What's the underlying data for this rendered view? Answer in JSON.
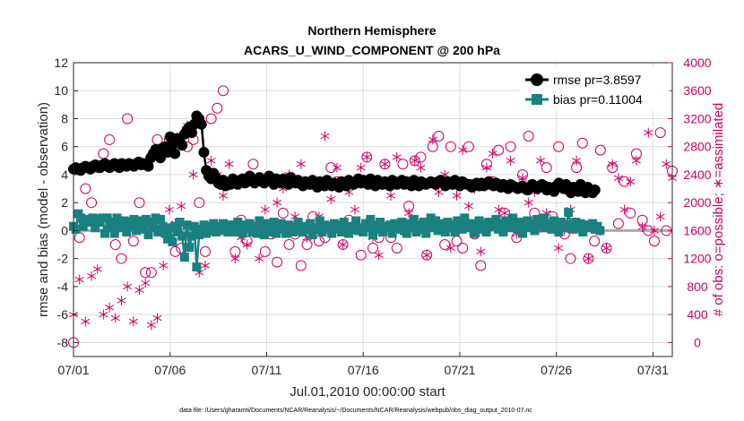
{
  "chart_data": {
    "type": "line",
    "title": "Northern Hemisphere",
    "subtitle": "ACARS_U_WIND_COMPONENT @ 200 hPa",
    "xlabel": "Jul.01,2010 00:00:00 start",
    "ylabel": "rmse and bias (model - observation)",
    "ylabel_right": "# of obs: o=possible; ∗=assimilated",
    "footnote": "data file: /Users/gharamti/Documents/NCAR/Reanalysis/~/Documents/NCAR/Reanalysis/webpub/obs_diag_output_2010-07.nc",
    "xlim": [
      1,
      32
    ],
    "ylim": [
      -9,
      12
    ],
    "ylim_right": [
      -200,
      4000
    ],
    "x_ticks": [
      1,
      6,
      11,
      16,
      21,
      26,
      31
    ],
    "x_tick_labels": [
      "07/01",
      "07/06",
      "07/11",
      "07/16",
      "07/21",
      "07/26",
      "07/31"
    ],
    "y_ticks": [
      -8,
      -6,
      -4,
      -2,
      0,
      2,
      4,
      6,
      8,
      10,
      12
    ],
    "y_ticks_right": [
      0,
      400,
      800,
      1200,
      1600,
      2000,
      2400,
      2800,
      3200,
      3600,
      4000
    ],
    "grid": true,
    "legend_position": "top-right",
    "x_step": 0.125,
    "series": [
      {
        "name": "rmse pr=3.8597",
        "axis": "left",
        "color": "#000000",
        "marker": "circle",
        "values": [
          4.4,
          4.5,
          4.4,
          4.3,
          4.5,
          4.6,
          4.5,
          4.4,
          4.6,
          4.7,
          4.6,
          4.5,
          4.7,
          4.8,
          4.6,
          4.5,
          4.7,
          4.8,
          4.6,
          4.5,
          4.8,
          4.7,
          4.6,
          4.8,
          4.7,
          4.6,
          4.8,
          4.9,
          4.7,
          4.8,
          4.7,
          4.6,
          5.2,
          5.5,
          5.8,
          5.6,
          5.2,
          5.9,
          6.0,
          5.6,
          6.7,
          6.2,
          5.5,
          6.6,
          6.4,
          6.1,
          6.9,
          7.2,
          7.4,
          7.0,
          7.6,
          8.2,
          8.0,
          7.6,
          5.6,
          4.3,
          3.9,
          3.7,
          4.1,
          3.8,
          3.4,
          3.3,
          3.6,
          3.2,
          3.4,
          3.3,
          3.7,
          3.5,
          3.3,
          3.6,
          3.7,
          3.4,
          3.5,
          3.9,
          3.6,
          3.4,
          3.6,
          3.8,
          3.5,
          3.4,
          3.6,
          3.9,
          3.5,
          3.3,
          3.7,
          3.6,
          3.4,
          3.7,
          3.5,
          3.3,
          3.8,
          3.5,
          3.4,
          3.6,
          3.4,
          3.2,
          3.5,
          3.4,
          3.3,
          3.6,
          3.4,
          3.1,
          3.5,
          3.3,
          3.2,
          3.6,
          3.3,
          3.2,
          3.4,
          3.3,
          3.1,
          3.5,
          3.3,
          3.2,
          3.6,
          3.4,
          3.3,
          3.5,
          3.7,
          3.4,
          3.6,
          3.5,
          3.3,
          3.7,
          3.4,
          3.2,
          3.6,
          3.4,
          3.3,
          3.5,
          3.4,
          3.2,
          3.6,
          3.5,
          3.3,
          3.4,
          3.6,
          3.3,
          3.5,
          3.4,
          3.2,
          3.6,
          3.3,
          3.2,
          3.5,
          3.4,
          3.3,
          3.4,
          3.5,
          3.4,
          3.3,
          3.5,
          3.6,
          3.4,
          3.2,
          3.5,
          3.4,
          3.3,
          3.6,
          3.4,
          3.2,
          3.5,
          3.4,
          3.3,
          3.3,
          3.1,
          3.3,
          3.4,
          3.2,
          3.4,
          3.2,
          3.3,
          3.5,
          3.3,
          3.2,
          3.4,
          3.3,
          3.1,
          3.3,
          3.2,
          3.0,
          3.3,
          3.2,
          3.1,
          3.0,
          3.1,
          3.2,
          3.0,
          2.9,
          3.1,
          3.3,
          3.2,
          3.0,
          3.1,
          3.3,
          3.2,
          2.9,
          3.1,
          3.0,
          2.8,
          3.2,
          3.4,
          3.2,
          3.0,
          3.3,
          2.9,
          2.7,
          3.1,
          3.0,
          2.8,
          3.3,
          3.0,
          2.7,
          3.1,
          2.9,
          2.7,
          2.9
        ]
      },
      {
        "name": "bias pr=0.11004",
        "axis": "left",
        "color": "#1a8080",
        "marker": "square",
        "values": [
          0.3,
          0.1,
          1.2,
          0.9,
          0.3,
          0.8,
          0.6,
          0.8,
          0.9,
          0.2,
          0.8,
          0.6,
          0.9,
          -0.2,
          0.9,
          0.2,
          0.6,
          -0.2,
          0.9,
          0.4,
          0.2,
          0.7,
          -0.1,
          0.6,
          0.3,
          0.8,
          0.0,
          0.7,
          0.4,
          0.1,
          0.8,
          -0.3,
          0.6,
          0.2,
          0.9,
          -0.1,
          0.8,
          0.3,
          -0.2,
          -0.6,
          0.2,
          -0.8,
          0.3,
          -0.1,
          0.6,
          -0.4,
          -1.9,
          0.4,
          -1.2,
          -0.4,
          0.3,
          -2.6,
          -0.3,
          0.1,
          0.4,
          -0.2,
          0.3,
          0.0,
          0.5,
          -0.1,
          0.3,
          0.0,
          0.5,
          0.1,
          -0.1,
          0.4,
          0.2,
          -0.1,
          0.6,
          0.0,
          -0.2,
          0.4,
          0.1,
          0.5,
          -0.1,
          0.3,
          -0.2,
          0.7,
          0.1,
          -0.3,
          0.5,
          0.3,
          -0.1,
          0.6,
          -0.2,
          0.2,
          0.5,
          0.1,
          -0.2,
          0.4,
          0.1,
          -0.1,
          0.3,
          0.6,
          0.0,
          -0.1,
          0.3,
          0.1,
          0.5,
          -0.3,
          0.2,
          0.1,
          0.7,
          -0.1,
          0.4,
          0.2,
          0.3,
          -0.2,
          0.5,
          0.1,
          0.4,
          -0.1,
          0.6,
          0.2,
          -0.2,
          0.3,
          0.1,
          0.7,
          0.0,
          0.2,
          -0.1,
          0.5,
          0.2,
          0.8,
          -0.3,
          0.4,
          0.1,
          0.6,
          -0.1,
          0.3,
          0.2,
          0.4,
          -0.2,
          0.5,
          0.1,
          0.3,
          0.6,
          0.0,
          -0.2,
          0.5,
          0.2,
          0.8,
          -0.1,
          0.4,
          0.1,
          0.6,
          -0.2,
          0.3,
          0.9,
          0.2,
          0.7,
          0.0,
          0.5,
          0.3,
          -0.1,
          0.6,
          0.2,
          0.4,
          -0.1,
          0.7,
          0.3,
          0.1,
          0.9,
          0.4,
          0.2,
          0.5,
          -0.2,
          0.3,
          0.7,
          0.1,
          0.5,
          -0.1,
          0.6,
          0.3,
          0.4,
          0.8,
          0.1,
          0.5,
          -0.1,
          0.7,
          0.3,
          0.2,
          0.9,
          0.4,
          0.1,
          0.6,
          -0.2,
          0.3,
          0.7,
          0.2,
          0.5,
          0.0,
          0.8,
          0.3,
          0.4,
          0.9,
          0.2,
          0.5,
          0.1,
          0.7,
          0.3,
          -0.1,
          0.6,
          0.4,
          0.2,
          1.3,
          0.4,
          0.1,
          0.6,
          0.2,
          0.5,
          -0.1,
          0.3,
          0.4,
          0.2,
          0.5,
          0.1,
          0.3,
          0.0
        ]
      },
      {
        "name": "possible",
        "axis": "right",
        "color": "#cc0066",
        "marker": "open-circle",
        "values": [
          0,
          1500,
          2200,
          2000,
          2500,
          2700,
          2900,
          1400,
          1200,
          3200,
          1450,
          2000,
          1000,
          1000,
          2900,
          2700,
          2900,
          1300,
          1350,
          2800,
          2900,
          2000,
          1300,
          3200,
          3350,
          3600,
          1650,
          1300,
          1750,
          1450,
          2550,
          1650,
          1300,
          1550,
          1150,
          1850,
          1400,
          1550,
          1100,
          1400,
          1800,
          1450,
          1500,
          2500,
          2300,
          1400,
          1750,
          1650,
          1250,
          2650,
          1350,
          1500,
          2550,
          1500,
          1350,
          2550,
          1950,
          2600,
          2650,
          1250,
          2800,
          2950,
          1400,
          2800,
          1450,
          1350,
          2800,
          1550,
          1100,
          2550,
          2300,
          2750,
          1850,
          2800,
          1500,
          2400,
          2950,
          1850,
          1650,
          2500,
          1800,
          2800,
          1550,
          1200,
          2500,
          2850,
          1200,
          1450,
          2750,
          1350,
          2500,
          1700,
          2300,
          1850,
          2700,
          1750,
          1600,
          1450,
          3000,
          1600,
          2450
        ]
      },
      {
        "name": "assimilated",
        "axis": "right",
        "color": "#cc0066",
        "marker": "asterisk",
        "values": [
          400,
          900,
          300,
          950,
          1050,
          400,
          500,
          350,
          600,
          800,
          300,
          750,
          850,
          250,
          350,
          1100,
          1900,
          1700,
          1950,
          3100,
          2400,
          1000,
          1100,
          2600,
          2400,
          2100,
          2550,
          1200,
          1500,
          1400,
          2350,
          1200,
          1900,
          1600,
          2000,
          2200,
          2400,
          1800,
          2550,
          1500,
          2300,
          1800,
          2950,
          2050,
          2500,
          1400,
          2150,
          1900,
          2500,
          2650,
          1500,
          1250,
          2550,
          2100,
          2650,
          1700,
          1850,
          2600,
          2500,
          1250,
          2900,
          2150,
          2400,
          1350,
          2100,
          2750,
          1950,
          2200,
          1300,
          2500,
          2700,
          1900,
          1850,
          2600,
          1550,
          2350,
          2000,
          2150,
          2600,
          1850,
          2200,
          1350,
          1600,
          1900,
          2600,
          1600,
          1200,
          2200,
          1600,
          1350,
          2550,
          2350,
          1900,
          2300,
          2600,
          1650,
          3000,
          1600,
          1800,
          2550,
          2350
        ]
      }
    ]
  }
}
